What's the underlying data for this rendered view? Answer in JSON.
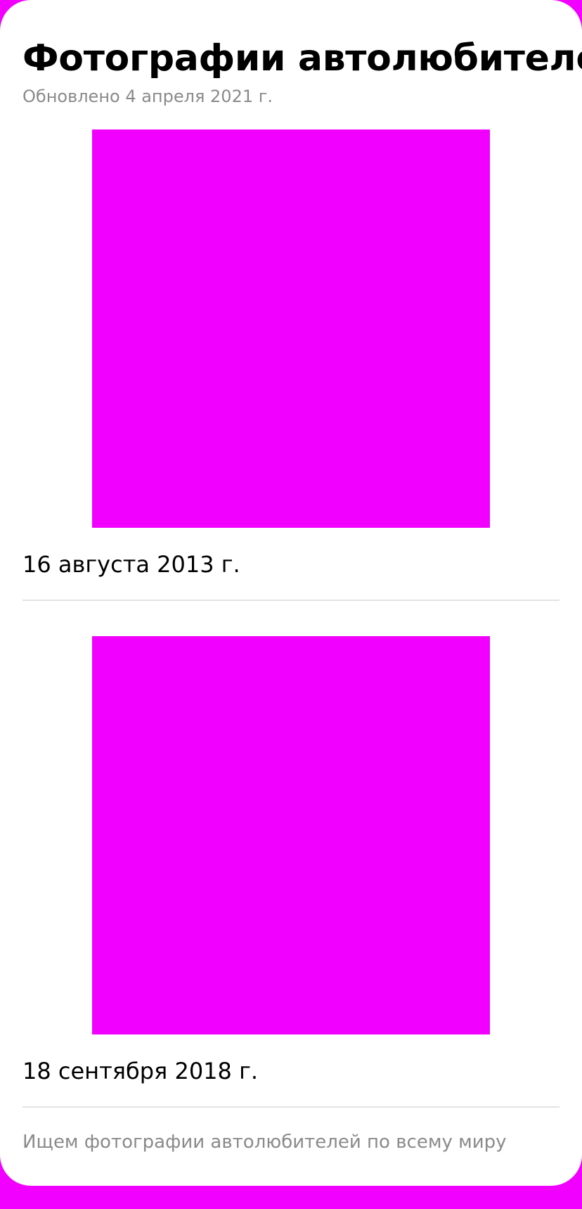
{
  "page": {
    "title": "Фотографии автолюбителей",
    "updated": "Обновлено 4 апреля 2021 г."
  },
  "photos": [
    {
      "date": "16 августа 2013 г."
    },
    {
      "date": "18 сентября 2018 г."
    }
  ],
  "footer": {
    "text": "Ищем фотографии автолюбителей по всему миру"
  },
  "colors": {
    "background": "#f200ff",
    "card": "#ffffff",
    "photo_placeholder": "#f200ff",
    "secondary_text": "#8a8a8a",
    "divider": "#e4e4e4"
  }
}
